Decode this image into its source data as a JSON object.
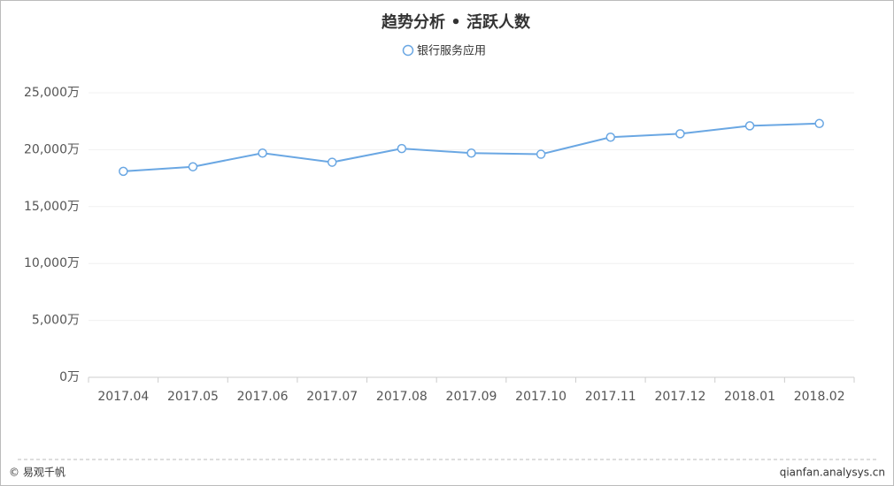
{
  "chart_data": {
    "type": "line",
    "title": "趋势分析 • 活跃人数",
    "categories": [
      "2017.04",
      "2017.05",
      "2017.06",
      "2017.07",
      "2017.08",
      "2017.09",
      "2017.10",
      "2017.11",
      "2017.12",
      "2018.01",
      "2018.02"
    ],
    "series": [
      {
        "name": "银行服务应用",
        "color": "#6aa7e3",
        "values": [
          18100,
          18500,
          19700,
          18900,
          20100,
          19700,
          19600,
          21100,
          21400,
          22100,
          22300
        ]
      }
    ],
    "ylim": [
      0,
      25000
    ],
    "yticks": [
      {
        "value": 0,
        "label": "0万"
      },
      {
        "value": 5000,
        "label": "5,000万"
      },
      {
        "value": 10000,
        "label": "10,000万"
      },
      {
        "value": 15000,
        "label": "15,000万"
      },
      {
        "value": 20000,
        "label": "20,000万"
      },
      {
        "value": 25000,
        "label": "25,000万"
      }
    ],
    "grid": true,
    "legend": "top"
  },
  "footer": {
    "left": "© 易观千帆",
    "right": "qianfan.analysys.cn"
  }
}
